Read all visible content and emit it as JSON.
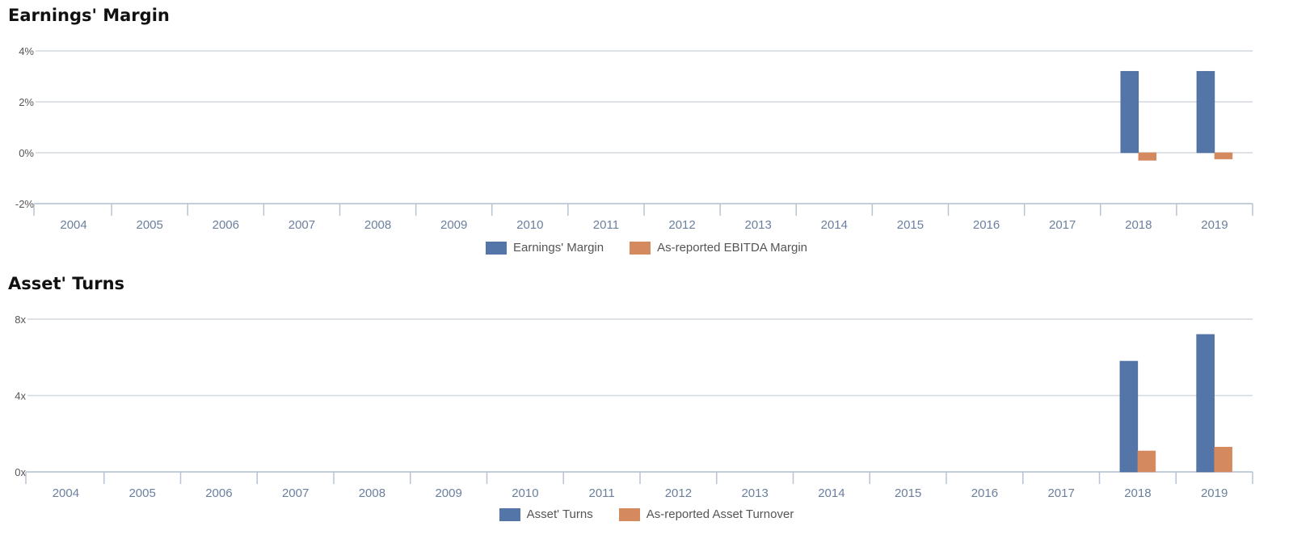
{
  "charts": [
    {
      "title": "Earnings' Margin",
      "chart_data": {
        "type": "bar",
        "categories": [
          "2004",
          "2005",
          "2006",
          "2007",
          "2008",
          "2009",
          "2010",
          "2011",
          "2012",
          "2013",
          "2014",
          "2015",
          "2016",
          "2017",
          "2018",
          "2019"
        ],
        "series": [
          {
            "name": "Earnings' Margin",
            "color": "#5375a8",
            "values": [
              null,
              null,
              null,
              null,
              null,
              null,
              null,
              null,
              null,
              null,
              null,
              null,
              null,
              null,
              3.2,
              3.2
            ]
          },
          {
            "name": "As-reported EBITDA Margin",
            "color": "#d5895f",
            "values": [
              null,
              null,
              null,
              null,
              null,
              null,
              null,
              null,
              null,
              null,
              null,
              null,
              null,
              null,
              -0.3,
              -0.25
            ]
          }
        ],
        "yticks": [
          -2,
          0,
          2,
          4
        ],
        "ytick_labels": [
          "-2%",
          "0%",
          "2%",
          "4%"
        ],
        "ylim": [
          -2,
          4
        ],
        "legend": "bottom-center",
        "grid": true
      }
    },
    {
      "title": "Asset' Turns",
      "chart_data": {
        "type": "bar",
        "categories": [
          "2004",
          "2005",
          "2006",
          "2007",
          "2008",
          "2009",
          "2010",
          "2011",
          "2012",
          "2013",
          "2014",
          "2015",
          "2016",
          "2017",
          "2018",
          "2019"
        ],
        "series": [
          {
            "name": "Asset' Turns",
            "color": "#5375a8",
            "values": [
              null,
              null,
              null,
              null,
              null,
              null,
              null,
              null,
              null,
              null,
              null,
              null,
              null,
              null,
              5.8,
              7.2
            ]
          },
          {
            "name": "As-reported Asset Turnover",
            "color": "#d5895f",
            "values": [
              null,
              null,
              null,
              null,
              null,
              null,
              null,
              null,
              null,
              null,
              null,
              null,
              null,
              null,
              1.1,
              1.3
            ]
          }
        ],
        "yticks": [
          0,
          4,
          8
        ],
        "ytick_labels": [
          "0x",
          "4x",
          "8x"
        ],
        "ylim": [
          0,
          8
        ],
        "legend": "bottom-center",
        "grid": true
      }
    }
  ]
}
